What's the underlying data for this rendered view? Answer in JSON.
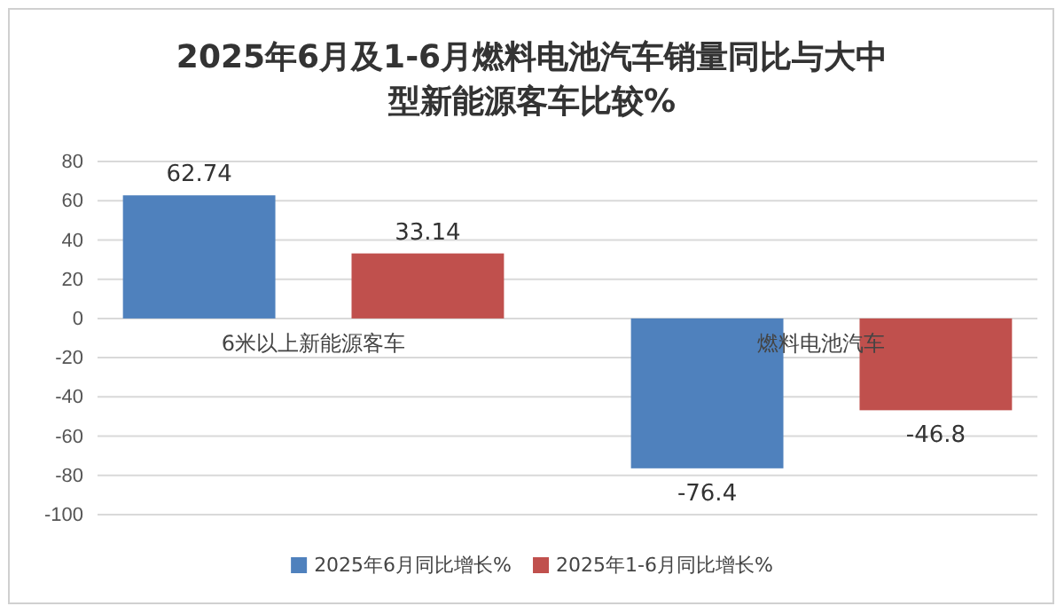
{
  "chart_data": {
    "type": "bar",
    "title": "2025年6月及1-6月燃料电池汽车销量同比与大中型新能源客车比较%",
    "categories": [
      "6米以上新能源客车",
      "燃料电池汽车"
    ],
    "series": [
      {
        "name": "2025年6月同比增长%",
        "color": "#4f81bd",
        "values": [
          62.74,
          -76.4
        ]
      },
      {
        "name": "2025年1-6月同比增长%",
        "color": "#c0504d",
        "values": [
          33.14,
          -46.8
        ]
      }
    ],
    "ylim": [
      -100,
      80
    ],
    "yticks": [
      -100,
      -80,
      -60,
      -40,
      -20,
      0,
      20,
      40,
      60,
      80
    ],
    "grid": "y",
    "legend": "bottom",
    "data_labels": true
  }
}
